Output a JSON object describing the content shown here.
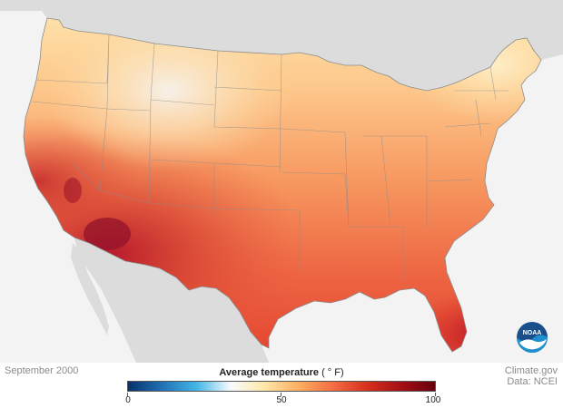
{
  "map": {
    "date_label": "September 2000",
    "credit_line1": "Climate.gov",
    "credit_line2": "Data: NCEI",
    "logo_text": "NOAA"
  },
  "legend": {
    "title": "Average temperature",
    "unit": "( ° F)",
    "tick_labels": [
      "0",
      "50",
      "100"
    ],
    "colors": [
      "#08306b",
      "#2171b5",
      "#41b6e6",
      "#f7fbff",
      "#fee8a8",
      "#fdae61",
      "#f46d43",
      "#d7301f",
      "#a50f15",
      "#67000d"
    ]
  },
  "colors": {
    "land_outside": "#dcdcdc",
    "ocean": "#f3f3f3",
    "state_border": "#8c8c8c"
  }
}
